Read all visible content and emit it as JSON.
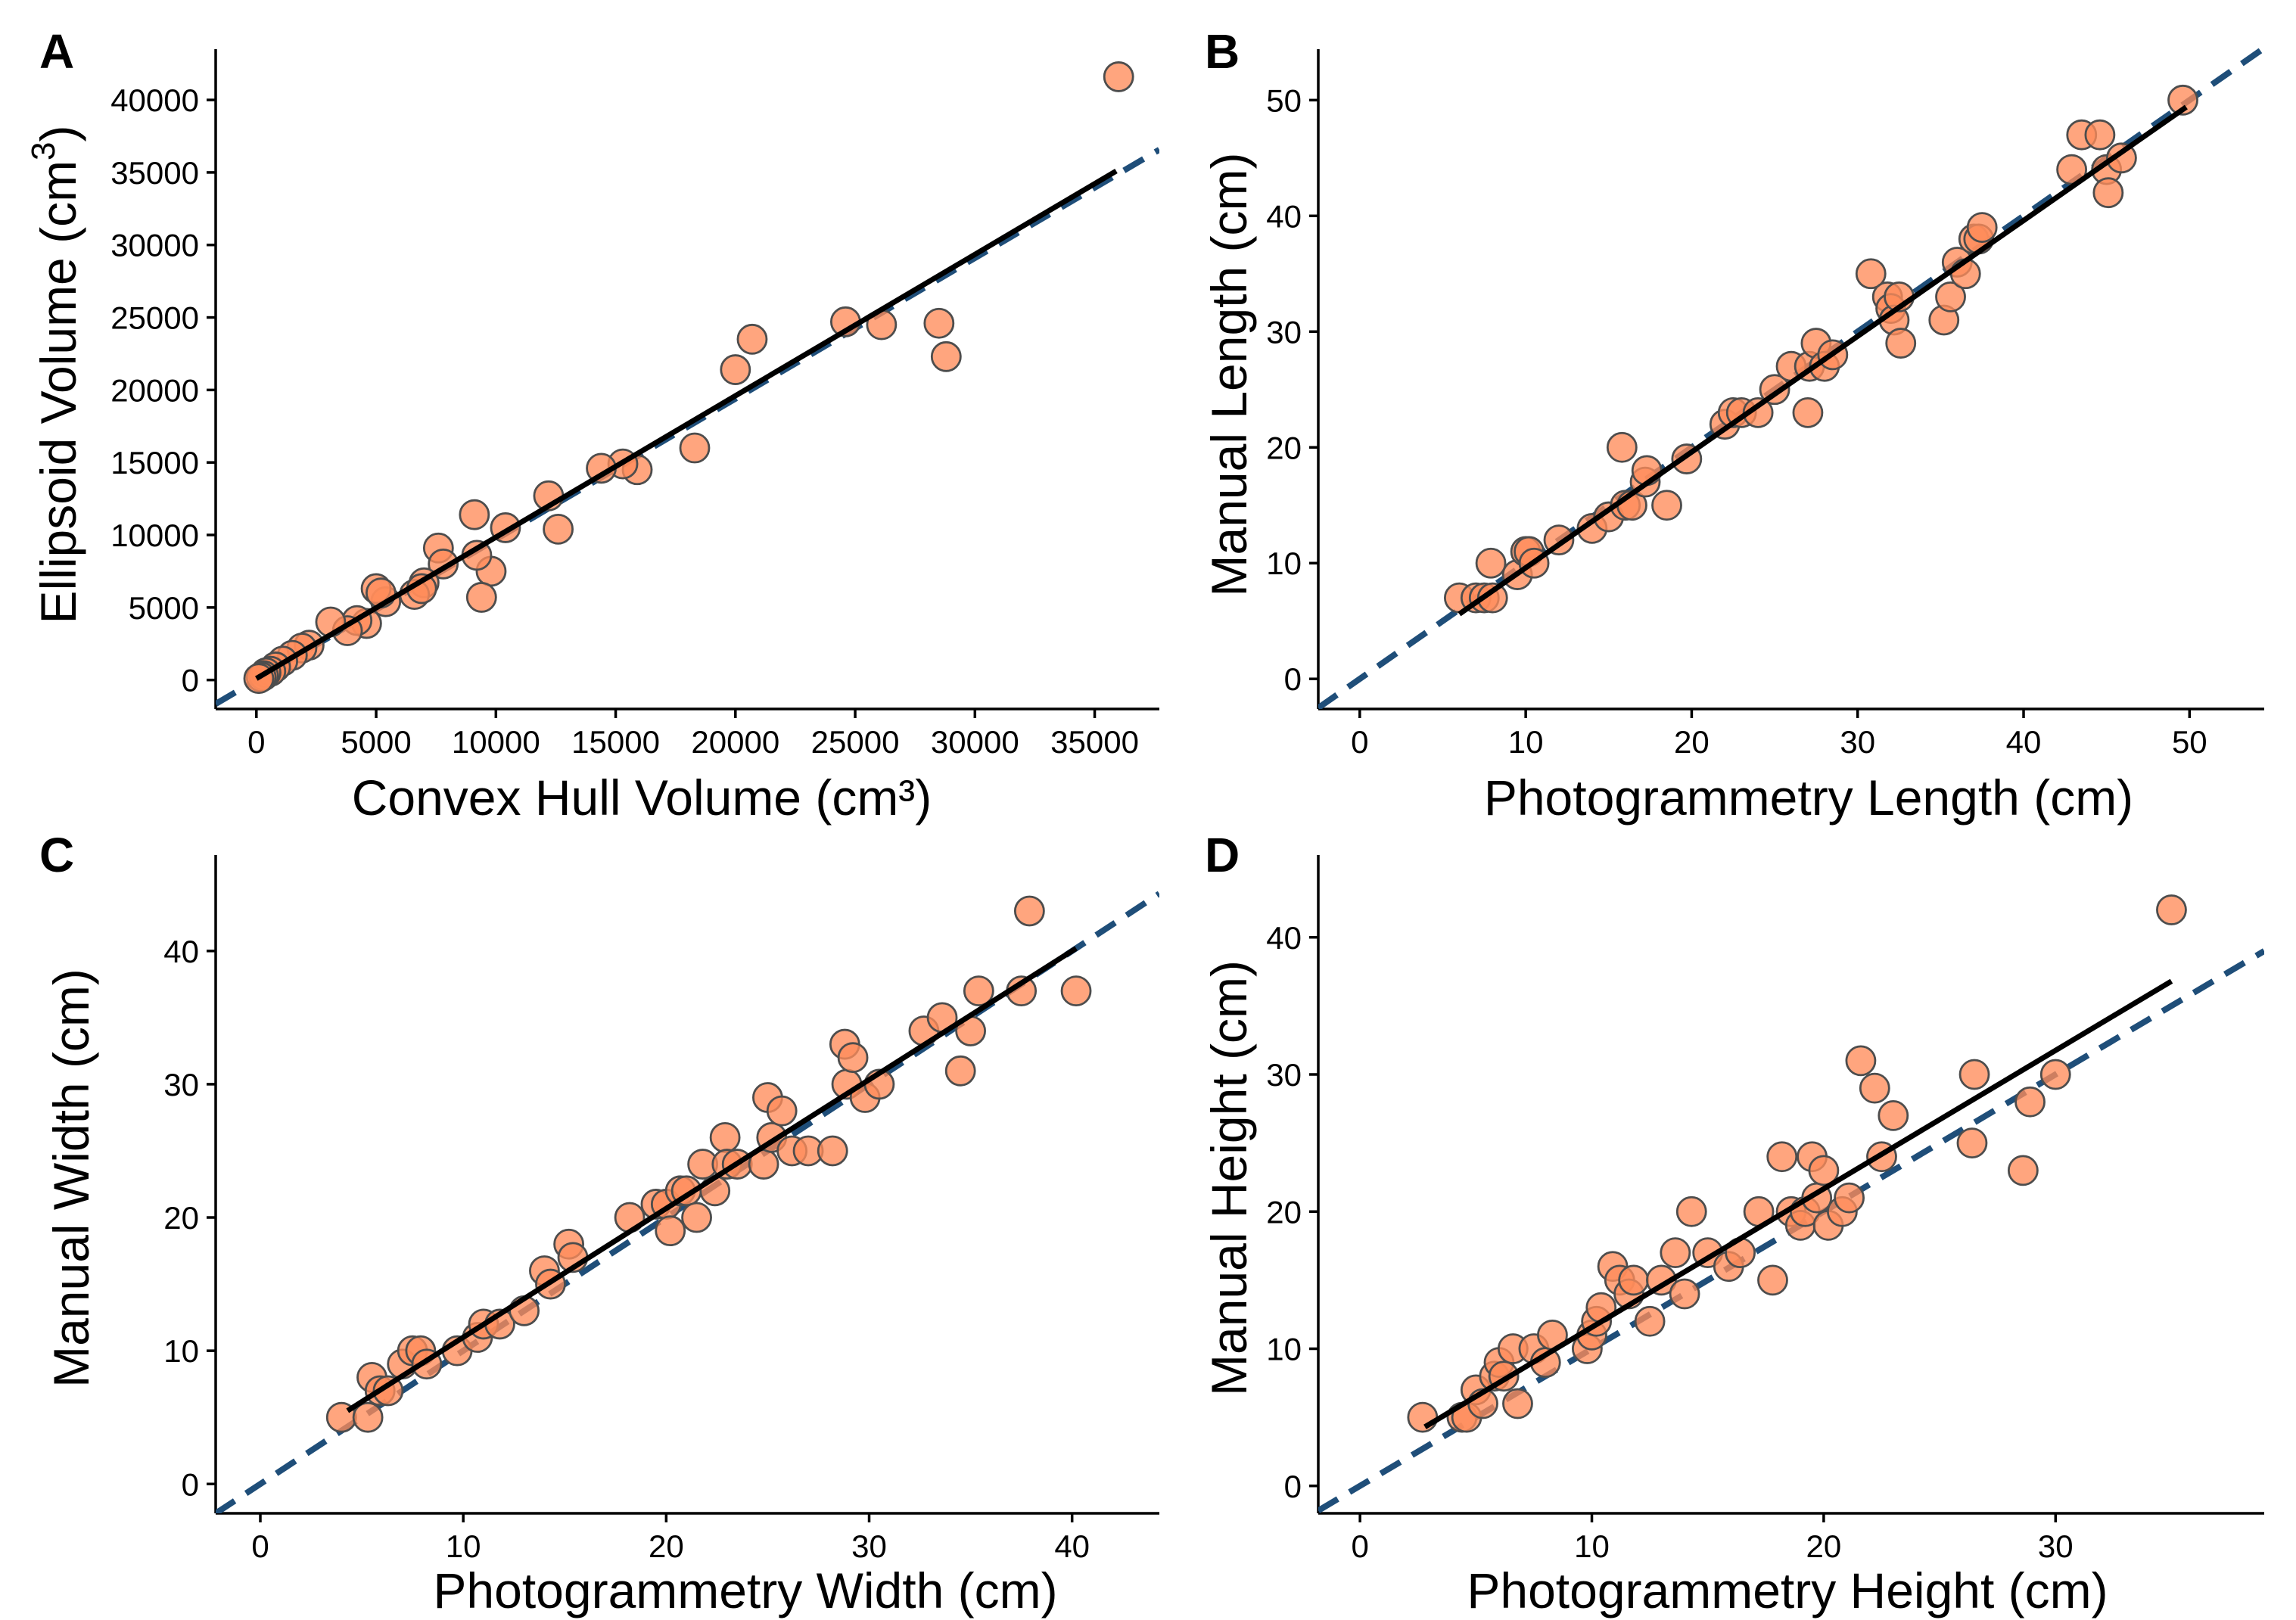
{
  "colors": {
    "point": "#FF8C5A",
    "reference_line": "#1f4e79",
    "fit_line": "#000000"
  },
  "chart_data": [
    {
      "type": "scatter",
      "panel": "A",
      "xlabel": "Convex Hull Volume (cm³)",
      "ylabel": "Ellipsoid Volume (cm³)",
      "xlim": [
        -1700,
        37700
      ],
      "ylim": [
        -2000,
        43500
      ],
      "xticks": [
        0,
        5000,
        10000,
        15000,
        20000,
        25000,
        30000,
        35000
      ],
      "yticks": [
        0,
        5000,
        10000,
        15000,
        20000,
        25000,
        30000,
        35000,
        40000
      ],
      "reference_line": {
        "slope": 0.97,
        "intercept": 0
      },
      "fit_line": {
        "x": [
          0,
          35900
        ],
        "y": [
          100,
          35100
        ]
      },
      "x": [
        36000,
        24600,
        26100,
        28500,
        28800,
        20700,
        20000,
        18300,
        15900,
        15300,
        14400,
        12600,
        12200,
        10400,
        9800,
        9200,
        9100,
        9400,
        7600,
        7800,
        7000,
        6600,
        6900,
        5400,
        5000,
        5200,
        4600,
        4200,
        3800,
        3100,
        2200,
        1900,
        1500,
        1100,
        800,
        600,
        400,
        300,
        200,
        100
      ],
      "y": [
        41600,
        24700,
        24500,
        24600,
        22300,
        23500,
        21400,
        16000,
        14500,
        14900,
        14600,
        10400,
        12700,
        10500,
        7500,
        8600,
        11400,
        5700,
        9100,
        8000,
        6700,
        5900,
        6300,
        5400,
        6300,
        6000,
        3900,
        4100,
        3400,
        4000,
        2400,
        2200,
        1700,
        1300,
        900,
        600,
        500,
        300,
        200,
        100
      ]
    },
    {
      "type": "scatter",
      "panel": "B",
      "xlabel": "Photogrammetry Length (cm)",
      "ylabel": "Manual Length (cm)",
      "xlim": [
        -2.5,
        54.5
      ],
      "ylim": [
        -2.6,
        54.4
      ],
      "xticks": [
        0,
        10,
        20,
        30,
        40,
        50
      ],
      "yticks": [
        0,
        10,
        20,
        30,
        40,
        50
      ],
      "reference_line": {
        "slope": 1.0,
        "intercept": 0
      },
      "fit_line": {
        "x": [
          6,
          49.8
        ],
        "y": [
          5.6,
          49.4
        ]
      },
      "x": [
        6.0,
        7.0,
        7.5,
        7.9,
        8.0,
        9.5,
        10.0,
        10.2,
        10.5,
        12.0,
        14.0,
        15.0,
        15.8,
        16.0,
        16.4,
        17.2,
        17.3,
        18.5,
        19.7,
        22.0,
        22.5,
        23.0,
        24.0,
        25.0,
        26.0,
        27.0,
        27.1,
        27.5,
        28.0,
        28.5,
        30.8,
        31.8,
        32.0,
        32.2,
        32.5,
        32.6,
        35.2,
        35.6,
        36.0,
        36.5,
        37.0,
        37.3,
        37.5,
        42.9,
        43.5,
        44.6,
        45.0,
        45.1,
        45.9,
        49.6
      ],
      "y": [
        7,
        7,
        7,
        10,
        7,
        9,
        11,
        11,
        10,
        12,
        13,
        14,
        20,
        15,
        15,
        17,
        18,
        15,
        19,
        22,
        23,
        23,
        23,
        25,
        27,
        23,
        27,
        29,
        27,
        28,
        35,
        33,
        32,
        31,
        33,
        29,
        31,
        33,
        36,
        35,
        38,
        38,
        39,
        44,
        47,
        47,
        44,
        42,
        45,
        50
      ]
    },
    {
      "type": "scatter",
      "panel": "C",
      "xlabel": "Photogrammetry Width (cm)",
      "ylabel": "Manual Width (cm)",
      "xlim": [
        -2.2,
        44.3
      ],
      "ylim": [
        -2.2,
        47.2
      ],
      "xticks": [
        0,
        10,
        20,
        30,
        40
      ],
      "yticks": [
        0,
        10,
        20,
        30,
        40
      ],
      "reference_line": {
        "slope": 1.0,
        "intercept": 0
      },
      "fit_line": {
        "x": [
          4.3,
          40.2
        ],
        "y": [
          5.5,
          40.2
        ]
      },
      "x": [
        4.0,
        5.3,
        5.5,
        5.9,
        6.3,
        7.0,
        7.5,
        7.9,
        8.2,
        9.7,
        10.7,
        11.0,
        11.8,
        13.0,
        14.0,
        14.3,
        15.2,
        15.4,
        18.2,
        19.5,
        20.0,
        20.2,
        20.7,
        21.0,
        21.5,
        21.8,
        22.4,
        22.9,
        23.0,
        23.5,
        24.8,
        25.0,
        25.2,
        25.7,
        26.2,
        27.0,
        28.2,
        28.8,
        28.9,
        29.2,
        29.8,
        30.5,
        32.7,
        33.6,
        34.5,
        35.0,
        35.4,
        37.5,
        37.9,
        40.2
      ],
      "y": [
        5,
        5,
        8,
        7,
        7,
        9,
        10,
        10,
        9,
        10,
        11,
        12,
        12,
        13,
        16,
        15,
        18,
        17,
        20,
        21,
        21,
        19,
        22,
        22,
        20,
        24,
        22,
        26,
        24,
        24,
        24,
        29,
        26,
        28,
        25,
        25,
        25,
        33,
        30,
        32,
        29,
        30,
        34,
        35,
        31,
        34,
        37,
        37,
        43,
        37
      ]
    },
    {
      "type": "scatter",
      "panel": "D",
      "xlabel": "Photogrammetry Height (cm)",
      "ylabel": "Manual Height (cm)",
      "xlim": [
        -1.8,
        39.0
      ],
      "ylim": [
        -2.0,
        46.0
      ],
      "xticks": [
        0,
        10,
        20,
        30
      ],
      "yticks": [
        0,
        10,
        20,
        30,
        40
      ],
      "reference_line": {
        "slope": 1.0,
        "intercept": 0
      },
      "fit_line": {
        "x": [
          2.8,
          35.0
        ],
        "y": [
          4.3,
          36.8
        ]
      },
      "x": [
        2.7,
        4.4,
        4.6,
        5.0,
        5.3,
        5.8,
        6.0,
        6.2,
        6.6,
        6.8,
        7.5,
        8.0,
        8.3,
        9.8,
        10.0,
        10.2,
        10.4,
        10.9,
        11.2,
        11.6,
        11.8,
        12.5,
        13.0,
        13.6,
        14.0,
        14.3,
        15.0,
        15.9,
        16.4,
        17.2,
        17.8,
        18.2,
        18.6,
        19.0,
        19.2,
        19.5,
        19.7,
        20.0,
        20.2,
        20.8,
        21.1,
        21.6,
        22.2,
        22.5,
        23.0,
        26.4,
        26.5,
        28.6,
        28.9,
        30.0,
        35.0
      ],
      "y": [
        5,
        5,
        5,
        7,
        6,
        8,
        9,
        8,
        10,
        6,
        10,
        9,
        11,
        10,
        11,
        12,
        13,
        16,
        15,
        14,
        15,
        12,
        15,
        17,
        14,
        20,
        17,
        16,
        17,
        20,
        15,
        24,
        20,
        19,
        20,
        24,
        21,
        23,
        19,
        20,
        21,
        31,
        29,
        24,
        27,
        25,
        30,
        23,
        28,
        30,
        42
      ]
    }
  ],
  "panels": [
    {
      "label": "A",
      "xlabel": "Convex Hull Volume (cm³)",
      "ylabel_main": "Ellipsoid Volume (cm",
      "ylabel_sup": "3",
      "ylabel_end": ")"
    },
    {
      "label": "B",
      "xlabel": "Photogrammetry Length (cm)",
      "ylabel": "Manual Length (cm)"
    },
    {
      "label": "C",
      "xlabel": "Photogrammetry Width (cm)",
      "ylabel": "Manual Width (cm)"
    },
    {
      "label": "D",
      "xlabel": "Photogrammetry Height (cm)",
      "ylabel": "Manual Height (cm)"
    }
  ]
}
